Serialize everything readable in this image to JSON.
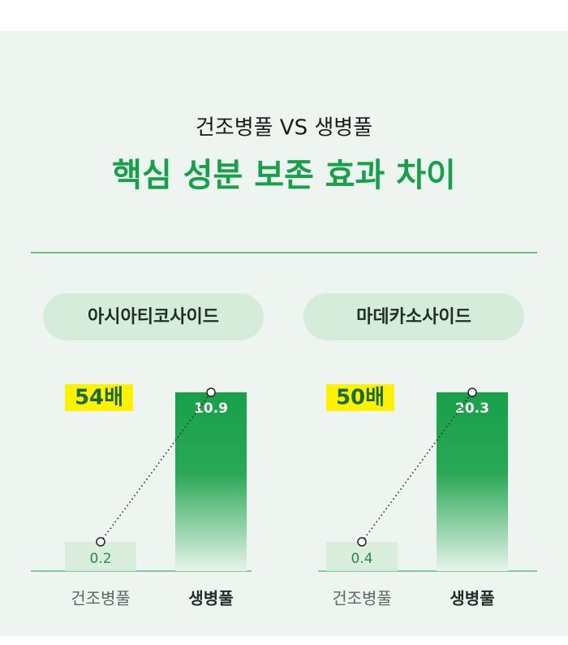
{
  "header": {
    "subtitle": "건조병풀 VS 생병풀",
    "title": "핵심 성분 보존 효과 차이"
  },
  "chart_data": [
    {
      "type": "bar",
      "title": "아시아티코사이드",
      "categories": [
        "건조병풀",
        "생병풀"
      ],
      "values": [
        0.2,
        10.9
      ],
      "annotation": "54배",
      "colors": [
        "#d4ecd9",
        "#17a04a"
      ]
    },
    {
      "type": "bar",
      "title": "마데카소사이드",
      "categories": [
        "건조병풀",
        "생병풀"
      ],
      "values": [
        0.4,
        20.3
      ],
      "annotation": "50배",
      "colors": [
        "#d4ecd9",
        "#17a04a"
      ]
    }
  ]
}
